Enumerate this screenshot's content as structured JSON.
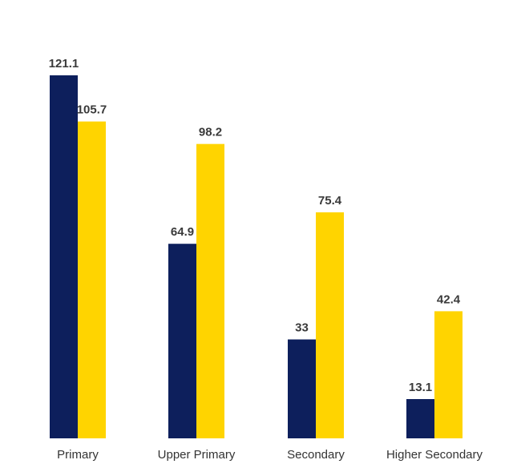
{
  "chart_data": {
    "type": "bar",
    "title": "",
    "xlabel": "",
    "ylabel": "",
    "categories": [
      "Primary",
      "Upper Primary",
      "Secondary",
      "Higher Secondary"
    ],
    "series": [
      {
        "color": "#0d1f5c",
        "values": [
          121.1,
          64.9,
          33,
          13.1
        ]
      },
      {
        "color": "#ffd400",
        "values": [
          105.7,
          98.2,
          75.4,
          42.4
        ]
      }
    ],
    "data_labels": [
      [
        "121.1",
        "64.9",
        "33",
        "13.1"
      ],
      [
        "105.7",
        "98.2",
        "75.4",
        "42.4"
      ]
    ],
    "ylim": [
      0,
      121.1
    ],
    "grid": false,
    "legend": "none"
  }
}
